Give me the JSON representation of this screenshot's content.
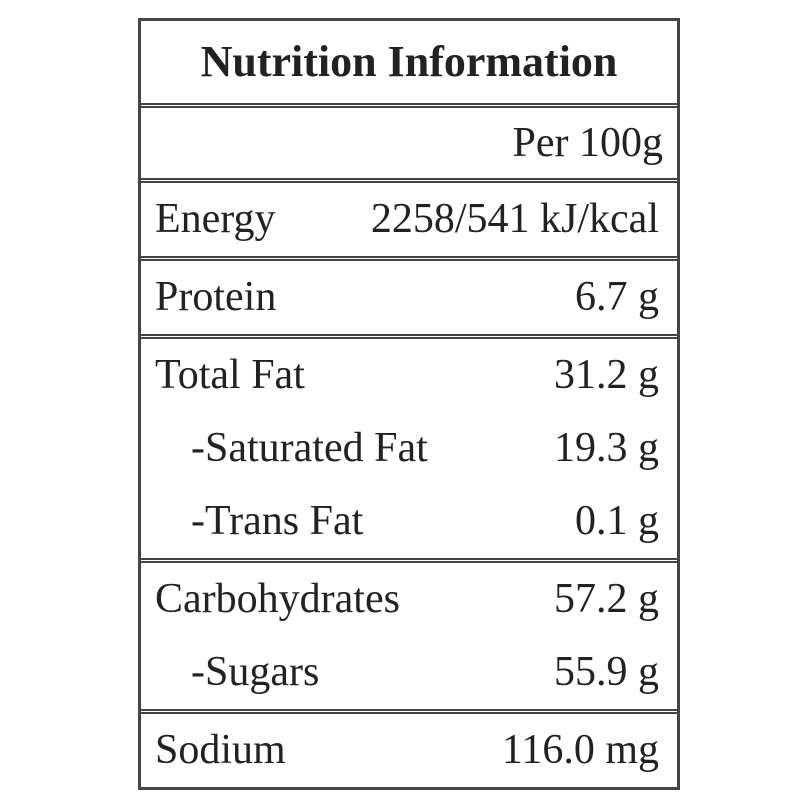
{
  "table": {
    "title": "Nutrition Information",
    "header": "Per 100g",
    "groups": [
      {
        "rows": [
          {
            "label": "Energy",
            "value": "2258/541 kJ/kcal"
          }
        ]
      },
      {
        "rows": [
          {
            "label": "Protein",
            "value": "6.7 g"
          }
        ]
      },
      {
        "rows": [
          {
            "label": "Total Fat",
            "value": "31.2 g"
          },
          {
            "label": "-Saturated Fat",
            "value": "19.3 g",
            "sub": true
          },
          {
            "label": "-Trans Fat",
            "value": "0.1 g",
            "sub": true
          }
        ]
      },
      {
        "rows": [
          {
            "label": "Carbohydrates",
            "value": "57.2 g"
          },
          {
            "label": "-Sugars",
            "value": "55.9 g",
            "sub": true
          }
        ]
      },
      {
        "rows": [
          {
            "label": "Sodium",
            "value": "116.0 mg"
          }
        ]
      }
    ]
  }
}
